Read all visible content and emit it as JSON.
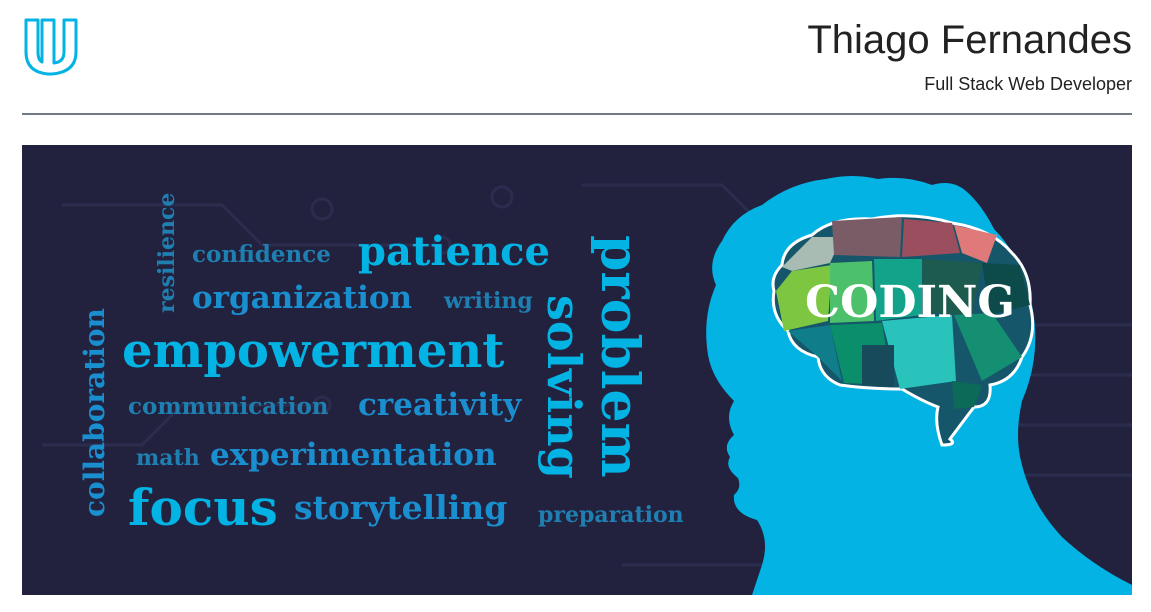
{
  "header": {
    "name": "Thiago Fernandes",
    "subtitle": "Full Stack Web Developer",
    "logo_icon": "udacity-logo-icon"
  },
  "banner": {
    "brain_label": "CODING",
    "words": {
      "resilience": "resilience",
      "confidence": "confidence",
      "patience": "patience",
      "organization": "organization",
      "writing": "writing",
      "collaboration": "collaboration",
      "empowerment": "empowerment",
      "communication": "communication",
      "creativity": "creativity",
      "math": "math",
      "experimentation": "experimentation",
      "focus": "focus",
      "storytelling": "storytelling",
      "preparation": "preparation",
      "problem": "problem",
      "solving": "solving"
    }
  },
  "colors": {
    "banner_bg": "#22223f",
    "accent": "#02b3e4",
    "rule": "#6f7a85"
  }
}
